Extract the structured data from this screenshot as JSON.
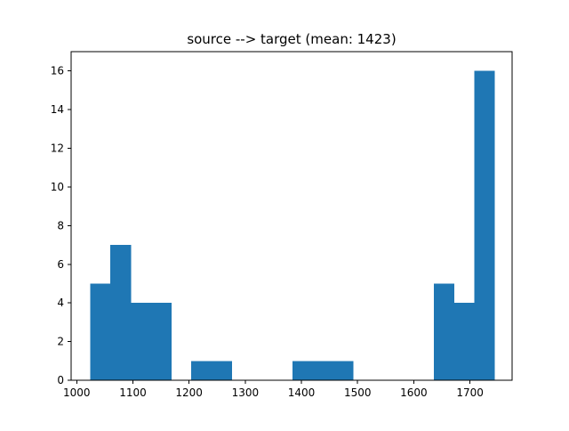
{
  "chart_data": {
    "type": "bar",
    "title": "source --> target (mean: 1423)",
    "xlabel": "",
    "ylabel": "",
    "xlim": [
      990,
      1775
    ],
    "ylim": [
      0,
      17
    ],
    "x_ticks": [
      1000,
      1100,
      1200,
      1300,
      1400,
      1500,
      1600,
      1700
    ],
    "y_ticks": [
      0,
      2,
      4,
      6,
      8,
      10,
      12,
      14,
      16
    ],
    "grid": false,
    "bar_color": "#1f77b4",
    "bins": [
      {
        "x0": 1024,
        "x1": 1060,
        "count": 5
      },
      {
        "x0": 1060,
        "x1": 1096,
        "count": 7
      },
      {
        "x0": 1096,
        "x1": 1132,
        "count": 4
      },
      {
        "x0": 1132,
        "x1": 1168,
        "count": 4
      },
      {
        "x0": 1168,
        "x1": 1204,
        "count": 0
      },
      {
        "x0": 1204,
        "x1": 1240,
        "count": 1
      },
      {
        "x0": 1240,
        "x1": 1276,
        "count": 1
      },
      {
        "x0": 1276,
        "x1": 1312,
        "count": 0
      },
      {
        "x0": 1312,
        "x1": 1348,
        "count": 0
      },
      {
        "x0": 1348,
        "x1": 1384,
        "count": 0
      },
      {
        "x0": 1384,
        "x1": 1420,
        "count": 1
      },
      {
        "x0": 1420,
        "x1": 1456,
        "count": 1
      },
      {
        "x0": 1456,
        "x1": 1492,
        "count": 1
      },
      {
        "x0": 1492,
        "x1": 1528,
        "count": 0
      },
      {
        "x0": 1528,
        "x1": 1564,
        "count": 0
      },
      {
        "x0": 1564,
        "x1": 1600,
        "count": 0
      },
      {
        "x0": 1600,
        "x1": 1636,
        "count": 0
      },
      {
        "x0": 1636,
        "x1": 1672,
        "count": 5
      },
      {
        "x0": 1672,
        "x1": 1708,
        "count": 4
      },
      {
        "x0": 1708,
        "x1": 1744,
        "count": 16
      }
    ]
  }
}
